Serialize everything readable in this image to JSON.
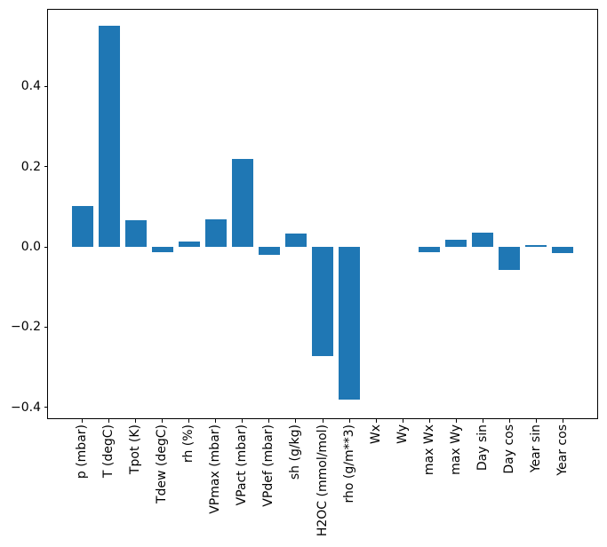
{
  "figure": {
    "background_color": "#ffffff",
    "axis_color": "#000000",
    "bar_color": "#1f77b4"
  },
  "chart_data": {
    "type": "bar",
    "title": "",
    "xlabel": "",
    "ylabel": "",
    "categories": [
      "p (mbar)",
      "T (degC)",
      "Tpot (K)",
      "Tdew (degC)",
      "rh (%)",
      "VPmax (mbar)",
      "VPact (mbar)",
      "VPdef (mbar)",
      "sh (g/kg)",
      "H2OC (mmol/mol)",
      "rho (g/m**3)",
      "Wx",
      "Wy",
      "max Wx",
      "max Wy",
      "Day sin",
      "Day cos",
      "Year sin",
      "Year cos"
    ],
    "values": [
      0.102,
      0.55,
      0.066,
      -0.013,
      0.013,
      0.068,
      0.22,
      -0.019,
      0.034,
      -0.273,
      -0.38,
      0.0,
      0.0,
      -0.014,
      0.018,
      0.036,
      -0.057,
      0.004,
      -0.016
    ],
    "bar_color": "#1f77b4",
    "bar_width_fraction": 0.8,
    "ytick_values": [
      0.4,
      0.2,
      0.0,
      -0.2,
      -0.4
    ],
    "ytick_labels": [
      "0.4",
      "0.2",
      "0.0",
      "−0.2",
      "−0.4"
    ],
    "ylim": [
      -0.429,
      0.593
    ],
    "xlim": [
      -1.333,
      19.333
    ],
    "xtick_rotation_deg": 90,
    "grid": false,
    "legend": null
  }
}
